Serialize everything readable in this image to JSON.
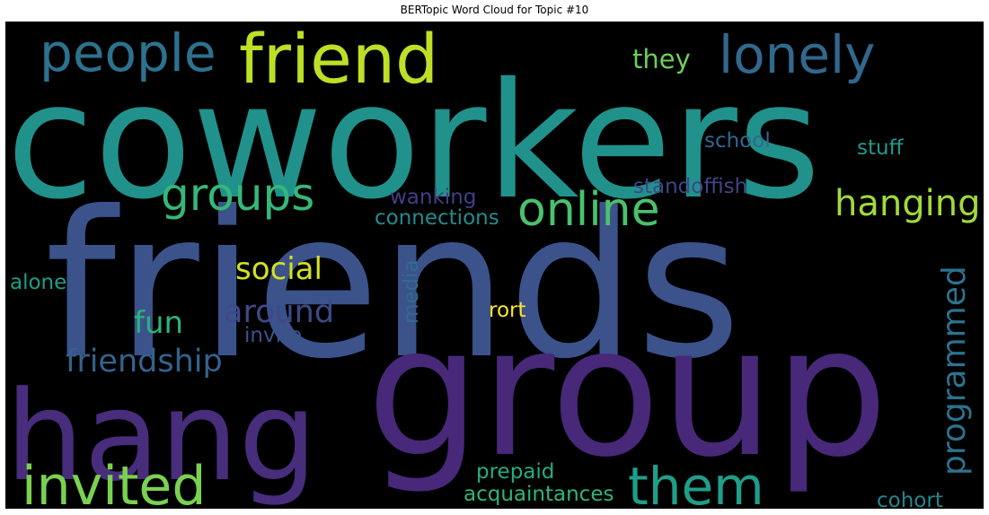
{
  "title": "BERTopic Word Cloud for Topic #10",
  "chart_data": {
    "type": "wordcloud",
    "background": "#000000",
    "colormap": "viridis",
    "words": [
      {
        "text": "coworkers",
        "weight": 1.0,
        "color": "#21918c"
      },
      {
        "text": "friends",
        "weight": 0.97,
        "color": "#3b528b"
      },
      {
        "text": "group",
        "weight": 0.95,
        "color": "#482878"
      },
      {
        "text": "hang",
        "weight": 0.72,
        "color": "#472d7b"
      },
      {
        "text": "friend",
        "weight": 0.45,
        "color": "#bddf26"
      },
      {
        "text": "invited",
        "weight": 0.36,
        "color": "#7ad151"
      },
      {
        "text": "people",
        "weight": 0.35,
        "color": "#2c728e"
      },
      {
        "text": "lonely",
        "weight": 0.35,
        "color": "#31688e"
      },
      {
        "text": "them",
        "weight": 0.35,
        "color": "#1f9e89"
      },
      {
        "text": "online",
        "weight": 0.32,
        "color": "#4ac16d"
      },
      {
        "text": "groups",
        "weight": 0.3,
        "color": "#35b779"
      },
      {
        "text": "hanging",
        "weight": 0.24,
        "color": "#a0da39"
      },
      {
        "text": "programmed",
        "weight": 0.22,
        "color": "#2c728e"
      },
      {
        "text": "around",
        "weight": 0.21,
        "color": "#3e4989"
      },
      {
        "text": "friendship",
        "weight": 0.21,
        "color": "#33638d"
      },
      {
        "text": "social",
        "weight": 0.2,
        "color": "#d2e21b"
      },
      {
        "text": "fun",
        "weight": 0.2,
        "color": "#2db27d"
      },
      {
        "text": "they",
        "weight": 0.17,
        "color": "#6ece58"
      },
      {
        "text": "school",
        "weight": 0.14,
        "color": "#31688e"
      },
      {
        "text": "stuff",
        "weight": 0.14,
        "color": "#1f9a8a"
      },
      {
        "text": "standoffish",
        "weight": 0.14,
        "color": "#414487"
      },
      {
        "text": "wanking",
        "weight": 0.14,
        "color": "#433e85"
      },
      {
        "text": "connections",
        "weight": 0.14,
        "color": "#228c8d"
      },
      {
        "text": "invite",
        "weight": 0.14,
        "color": "#3b528b"
      },
      {
        "text": "media",
        "weight": 0.14,
        "color": "#2f6c8e"
      },
      {
        "text": "alone",
        "weight": 0.14,
        "color": "#1f9e89"
      },
      {
        "text": "rort",
        "weight": 0.14,
        "color": "#fde725"
      },
      {
        "text": "prepaid",
        "weight": 0.14,
        "color": "#25ac82"
      },
      {
        "text": "acquaintances",
        "weight": 0.14,
        "color": "#2fb47c"
      },
      {
        "text": "cohort",
        "weight": 0.14,
        "color": "#25858e"
      }
    ]
  }
}
